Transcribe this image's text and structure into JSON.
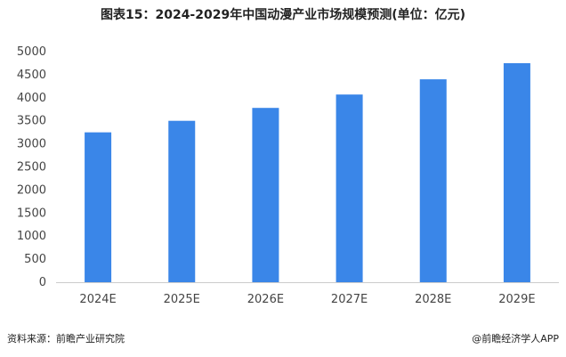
{
  "title": "图表15：2024-2029年中国动漫产业市场规模预测(单位：亿元)",
  "source": "资料来源：前瞻产业研究院",
  "brand": "@前瞻经济学人APP",
  "colors": {
    "bar": "#3a86e8",
    "axis": "#cccccc"
  },
  "chart_data": {
    "type": "bar",
    "title": "图表15：2024-2029年中国动漫产业市场规模预测(单位：亿元)",
    "xlabel": "",
    "ylabel": "",
    "categories": [
      "2024E",
      "2025E",
      "2026E",
      "2027E",
      "2028E",
      "2029E"
    ],
    "values": [
      3250,
      3500,
      3780,
      4070,
      4400,
      4750
    ],
    "ylim": [
      0,
      5000
    ],
    "yticks": [
      0,
      500,
      1000,
      1500,
      2000,
      2500,
      3000,
      3500,
      4000,
      4500,
      5000
    ],
    "grid": false,
    "legend": "none"
  }
}
